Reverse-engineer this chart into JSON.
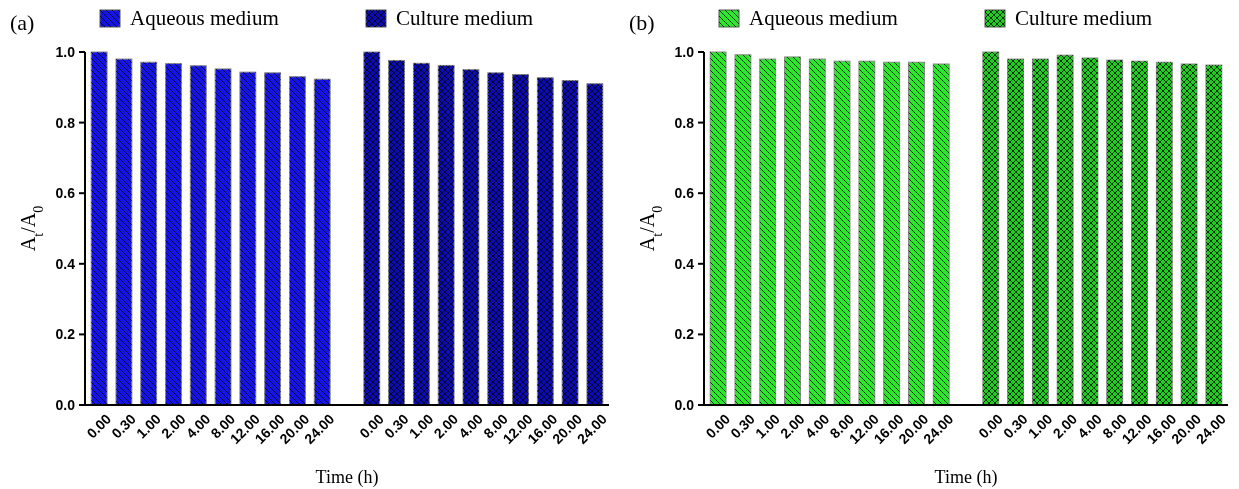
{
  "chart_data": [
    {
      "type": "bar",
      "title": "(a)",
      "xlabel": "Time (h)",
      "ylabel": "A$_{t}$/A$_{0}$",
      "categories": [
        "0.00",
        "0.30",
        "1.00",
        "2.00",
        "4.00",
        "8.00",
        "12.00",
        "16.00",
        "20.00",
        "24.00",
        null,
        "0.00",
        "0.30",
        "1.00",
        "2.00",
        "4.00",
        "8.00",
        "12.00",
        "16.00",
        "20.00",
        "24.00"
      ],
      "series": [
        {
          "name": "Aqueous medium",
          "color": "#1414e6",
          "values": [
            1.0,
            0.98,
            0.971,
            0.967,
            0.961,
            0.952,
            0.943,
            0.941,
            0.93,
            0.923,
            null,
            null,
            null,
            null,
            null,
            null,
            null,
            null,
            null,
            null,
            null
          ]
        },
        {
          "name": "Culture medium",
          "color": "#0c0cb4",
          "values": [
            null,
            null,
            null,
            null,
            null,
            null,
            null,
            null,
            null,
            null,
            null,
            1.0,
            0.976,
            0.968,
            0.962,
            0.95,
            0.941,
            0.936,
            0.927,
            0.919,
            0.91
          ]
        }
      ],
      "ylim": [
        0,
        1.0
      ],
      "yticks": [
        {
          "value": 0,
          "label": "0.0"
        },
        {
          "value": 0.2,
          "label": "0.2"
        },
        {
          "value": 0.4,
          "label": "0.4"
        },
        {
          "value": 0.6,
          "label": "0.6"
        },
        {
          "value": 0.8,
          "label": "0.8"
        },
        {
          "value": 1.0,
          "label": "1.0"
        }
      ],
      "legend": "top"
    },
    {
      "type": "bar",
      "title": "(b)",
      "xlabel": "Time (h)",
      "ylabel": "A$_{t}$/A$_{0}$",
      "categories": [
        "0.00",
        "0.30",
        "1.00",
        "2.00",
        "4.00",
        "8.00",
        "12.00",
        "16.00",
        "20.00",
        "24.00",
        null,
        "0.00",
        "0.30",
        "1.00",
        "2.00",
        "4.00",
        "8.00",
        "12.00",
        "16.00",
        "20.00",
        "24.00"
      ],
      "series": [
        {
          "name": "Aqueous medium",
          "color": "#2ee62e",
          "values": [
            1.0,
            0.992,
            0.98,
            0.986,
            0.98,
            0.974,
            0.974,
            0.971,
            0.971,
            0.966,
            null,
            null,
            null,
            null,
            null,
            null,
            null,
            null,
            null,
            null,
            null
          ]
        },
        {
          "name": "Culture medium",
          "color": "#22cc22",
          "values": [
            null,
            null,
            null,
            null,
            null,
            null,
            null,
            null,
            null,
            null,
            null,
            1.0,
            0.98,
            0.98,
            0.991,
            0.983,
            0.977,
            0.974,
            0.971,
            0.966,
            0.963
          ]
        }
      ],
      "ylim": [
        0,
        1.0
      ],
      "yticks": [
        {
          "value": 0,
          "label": "0.0"
        },
        {
          "value": 0.2,
          "label": "0.2"
        },
        {
          "value": 0.4,
          "label": "0.4"
        },
        {
          "value": 0.6,
          "label": "0.6"
        },
        {
          "value": 0.8,
          "label": "0.8"
        },
        {
          "value": 1.0,
          "label": "1.0"
        }
      ],
      "legend": "top"
    }
  ]
}
